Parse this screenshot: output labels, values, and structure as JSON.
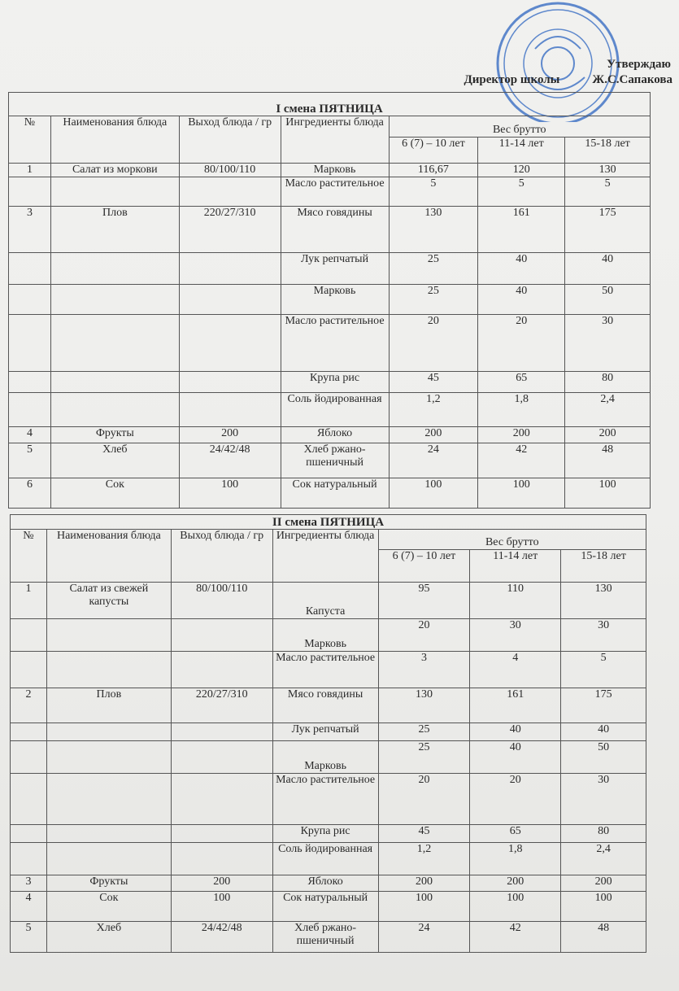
{
  "header": {
    "approve": "Утверждаю",
    "position": "Директор школы",
    "name": "Ж.С.Сапакова"
  },
  "columns": {
    "num": "№",
    "name": "Наименования блюда",
    "yield": "Выход блюда / гр",
    "ingredients": "Ингредиенты блюда",
    "weight": "Вес брутто",
    "age1": "6 (7) – 10 лет",
    "age2": "11-14 лет",
    "age3": "15-18 лет"
  },
  "stamp_color": "#3a6fc4",
  "tables": [
    {
      "title": "I смена ПЯТНИЦА",
      "rows": [
        [
          "1",
          "Салат из моркови",
          "80/100/110",
          "Марковь",
          "116,67",
          "120",
          "130"
        ],
        [
          "",
          "",
          "",
          "Масло растительное",
          "5",
          "5",
          "5"
        ],
        [
          "3",
          "Плов",
          "220/27/310",
          "Мясо говядины",
          "130",
          "161",
          "175"
        ],
        [
          "",
          "",
          "",
          "Лук репчатый",
          "25",
          "40",
          "40"
        ],
        [
          "",
          "",
          "",
          "Марковь",
          "25",
          "40",
          "50"
        ],
        [
          "",
          "",
          "",
          "Масло растительное",
          "20",
          "20",
          "30"
        ],
        [
          "",
          "",
          "",
          "Крупа рис",
          "45",
          "65",
          "80"
        ],
        [
          "",
          "",
          "",
          "Соль йодированная",
          "1,2",
          "1,8",
          "2,4"
        ],
        [
          "4",
          "Фрукты",
          "200",
          "Яблоко",
          "200",
          "200",
          "200"
        ],
        [
          "5",
          "Хлеб",
          "24/42/48",
          "Хлеб ржано-пшеничный",
          "24",
          "42",
          "48"
        ],
        [
          "6",
          "Сок",
          "100",
          "Сок натуральный",
          "100",
          "100",
          "100"
        ]
      ]
    },
    {
      "title": "II смена ПЯТНИЦА",
      "rows": [
        [
          "1",
          "Салат из свежей капусты",
          "80/100/110",
          "Капуста",
          "95",
          "110",
          "130"
        ],
        [
          "",
          "",
          "",
          "Марковь",
          "20",
          "30",
          "30"
        ],
        [
          "",
          "",
          "",
          "Масло растительное",
          "3",
          "4",
          "5"
        ],
        [
          "2",
          "Плов",
          "220/27/310",
          "Мясо говядины",
          "130",
          "161",
          "175"
        ],
        [
          "",
          "",
          "",
          "Лук репчатый",
          "25",
          "40",
          "40"
        ],
        [
          "",
          "",
          "",
          "Марковь",
          "25",
          "40",
          "50"
        ],
        [
          "",
          "",
          "",
          "Масло растительное",
          "20",
          "20",
          "30"
        ],
        [
          "",
          "",
          "",
          "Крупа рис",
          "45",
          "65",
          "80"
        ],
        [
          "",
          "",
          "",
          "Соль йодированная",
          "1,2",
          "1,8",
          "2,4"
        ],
        [
          "3",
          "Фрукты",
          "200",
          "Яблоко",
          "200",
          "200",
          "200"
        ],
        [
          "4",
          "Сок",
          "100",
          "Сок натуральный",
          "100",
          "100",
          "100"
        ],
        [
          "5",
          "Хлеб",
          "24/42/48",
          "Хлеб ржано-пшеничный",
          "24",
          "42",
          "48"
        ]
      ]
    }
  ]
}
